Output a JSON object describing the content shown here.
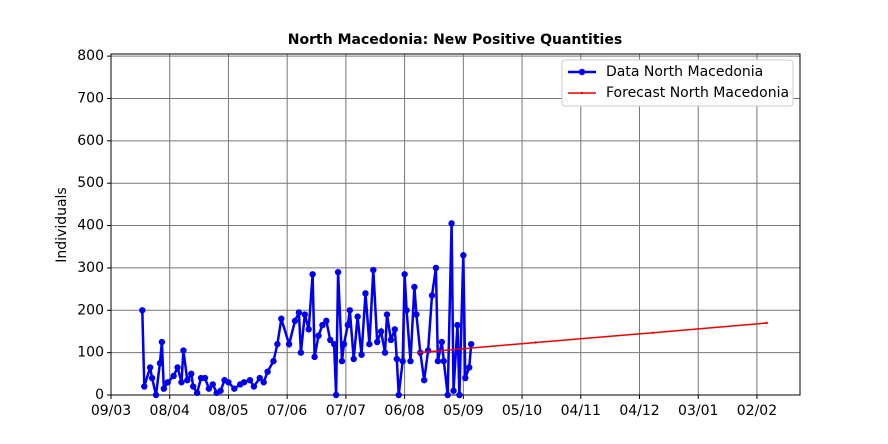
{
  "chart_data": {
    "type": "line",
    "title": "North Macedonia: New Positive Quantities",
    "y_label": "Individuals",
    "xlim": [
      "09/03",
      "24/02"
    ],
    "xticks": [
      "09/03",
      "08/04",
      "08/05",
      "07/06",
      "07/07",
      "06/08",
      "05/09",
      "05/10",
      "04/11",
      "04/12",
      "03/01",
      "02/02"
    ],
    "ylim": [
      0,
      805
    ],
    "yticks": [
      0,
      100,
      200,
      300,
      400,
      500,
      600,
      700,
      800
    ],
    "grid": true,
    "legend": "upper right",
    "series": [
      {
        "name": "Data North Macedonia",
        "color": "#0000ee",
        "x": [
          "25/03",
          "26/03",
          "29/03",
          "30/03",
          "01/04",
          "03/04",
          "04/04",
          "05/04",
          "07/04",
          "10/04",
          "12/04",
          "14/04",
          "15/04",
          "17/04",
          "19/04",
          "20/04",
          "22/04",
          "24/04",
          "26/04",
          "28/04",
          "30/04",
          "02/05",
          "04/05",
          "06/05",
          "08/05",
          "11/05",
          "14/05",
          "16/05",
          "19/05",
          "21/05",
          "24/05",
          "26/05",
          "28/05",
          "31/05",
          "02/06",
          "04/06",
          "08/06",
          "11/06",
          "13/06",
          "14/06",
          "16/06",
          "18/06",
          "20/06",
          "21/06",
          "23/06",
          "25/06",
          "27/06",
          "29/06",
          "01/07",
          "02/07",
          "03/07",
          "05/07",
          "06/07",
          "08/07",
          "09/07",
          "11/07",
          "13/07",
          "15/07",
          "17/07",
          "19/07",
          "21/07",
          "23/07",
          "25/07",
          "27/07",
          "28/07",
          "30/07",
          "01/08",
          "02/08",
          "03/08",
          "05/08",
          "06/08",
          "07/08",
          "09/08",
          "11/08",
          "12/08",
          "14/08",
          "16/08",
          "18/08",
          "20/08",
          "22/08",
          "23/08",
          "25/08",
          "26/08",
          "28/08",
          "30/08",
          "31/08",
          "02/09",
          "03/09",
          "05/09",
          "06/09",
          "08/09",
          "09/09"
        ],
        "values": [
          200,
          20,
          65,
          40,
          0,
          75,
          125,
          15,
          30,
          45,
          65,
          30,
          105,
          35,
          50,
          20,
          5,
          40,
          40,
          15,
          25,
          5,
          10,
          35,
          30,
          15,
          25,
          30,
          35,
          20,
          40,
          30,
          55,
          80,
          120,
          180,
          120,
          175,
          195,
          100,
          190,
          155,
          285,
          90,
          140,
          165,
          175,
          130,
          120,
          0,
          290,
          80,
          120,
          165,
          200,
          85,
          185,
          95,
          240,
          120,
          295,
          125,
          150,
          100,
          190,
          130,
          155,
          85,
          0,
          80,
          285,
          200,
          80,
          255,
          190,
          100,
          35,
          105,
          235,
          300,
          80,
          125,
          80,
          0,
          405,
          10,
          165,
          0,
          330,
          40,
          65,
          120
        ]
      },
      {
        "name": "Forecast North Macedonia",
        "color": "#ee0000",
        "x": [
          "13/08",
          "12/10",
          "11/12",
          "07/02"
        ],
        "values": [
          100,
          124,
          147,
          170
        ]
      }
    ]
  }
}
